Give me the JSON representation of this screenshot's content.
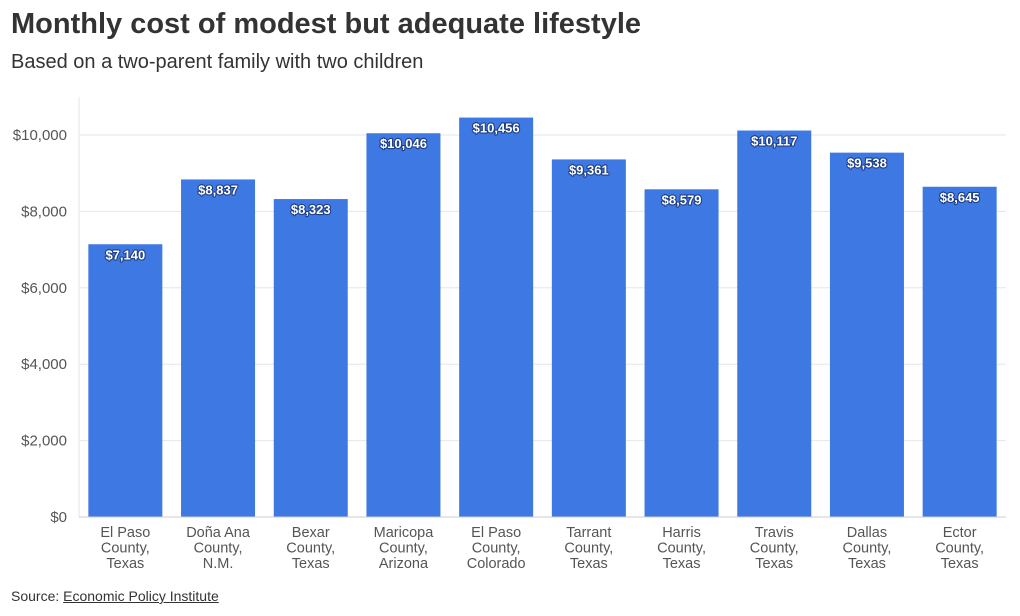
{
  "header": {
    "title": "Monthly cost of modest but adequate lifestyle",
    "subtitle": "Based on a two-parent family with two children"
  },
  "footer": {
    "source_label": "Source: ",
    "source_link": "Economic Policy Institute"
  },
  "colors": {
    "bar": "#3d78e3",
    "gridline": "#e6e6e6",
    "axis_text": "#555555",
    "label_text": "#ffffff"
  },
  "chart_data": {
    "type": "bar",
    "title": "Monthly cost of modest but adequate lifestyle",
    "subtitle": "Based on a two-parent family with two children",
    "categories": [
      [
        "El Paso",
        "County,",
        "Texas"
      ],
      [
        "Doña Ana",
        "County,",
        "N.M."
      ],
      [
        "Bexar",
        "County,",
        "Texas"
      ],
      [
        "Maricopa",
        "County,",
        "Arizona"
      ],
      [
        "El Paso",
        "County,",
        "Colorado"
      ],
      [
        "Tarrant",
        "County,",
        "Texas"
      ],
      [
        "Harris",
        "County,",
        "Texas"
      ],
      [
        "Travis",
        "County,",
        "Texas"
      ],
      [
        "Dallas",
        "County,",
        "Texas"
      ],
      [
        "Ector",
        "County,",
        "Texas"
      ]
    ],
    "values": [
      7140,
      8837,
      8323,
      10046,
      10456,
      9361,
      8579,
      10117,
      9538,
      8645
    ],
    "value_labels": [
      "$7,140",
      "$8,837",
      "$8,323",
      "$10,046",
      "$10,456",
      "$9,361",
      "$8,579",
      "$10,117",
      "$9,538",
      "$8,645"
    ],
    "ylim": [
      0,
      11000
    ],
    "yticks": [
      0,
      2000,
      4000,
      6000,
      8000,
      10000
    ],
    "ytick_labels": [
      "$0",
      "$2,000",
      "$4,000",
      "$6,000",
      "$8,000",
      "$10,000"
    ],
    "grid": true,
    "legend": "none"
  }
}
